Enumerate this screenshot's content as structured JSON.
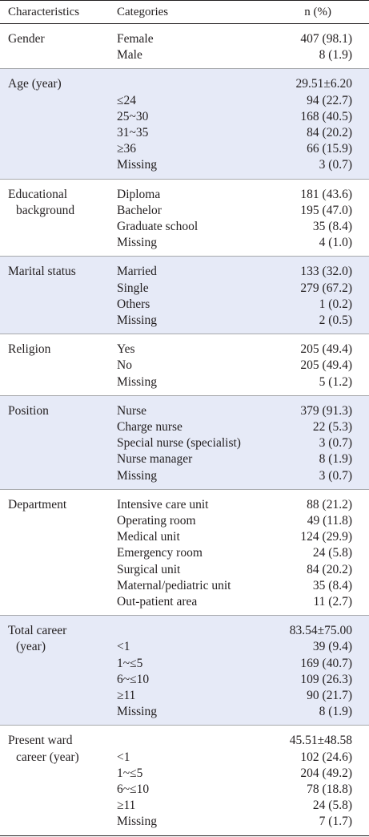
{
  "header": {
    "characteristics": "Characteristics",
    "categories": "Categories",
    "n_pct": "n (%)"
  },
  "groups": [
    {
      "name": [
        "Gender"
      ],
      "rows": [
        {
          "cat": "Female",
          "val": "407 (98.1)"
        },
        {
          "cat": "Male",
          "val": "8 (1.9)"
        }
      ]
    },
    {
      "name": [
        "Age (year)"
      ],
      "rows": [
        {
          "cat": "",
          "val": "29.51±6.20"
        },
        {
          "cat": "≤24",
          "val": "94 (22.7)"
        },
        {
          "cat": "25~30",
          "val": "168 (40.5)"
        },
        {
          "cat": "31~35",
          "val": "84 (20.2)"
        },
        {
          "cat": "≥36",
          "val": "66 (15.9)"
        },
        {
          "cat": "Missing",
          "val": "3 (0.7)"
        }
      ]
    },
    {
      "name": [
        "Educational",
        "background"
      ],
      "rows": [
        {
          "cat": "Diploma",
          "val": "181 (43.6)"
        },
        {
          "cat": "Bachelor",
          "val": "195 (47.0)"
        },
        {
          "cat": "Graduate school",
          "val": "35 (8.4)"
        },
        {
          "cat": "Missing",
          "val": "4 (1.0)"
        }
      ]
    },
    {
      "name": [
        "Marital status"
      ],
      "rows": [
        {
          "cat": "Married",
          "val": "133 (32.0)"
        },
        {
          "cat": "Single",
          "val": "279 (67.2)"
        },
        {
          "cat": "Others",
          "val": "1 (0.2)"
        },
        {
          "cat": "Missing",
          "val": "2 (0.5)"
        }
      ]
    },
    {
      "name": [
        "Religion"
      ],
      "rows": [
        {
          "cat": "Yes",
          "val": "205 (49.4)"
        },
        {
          "cat": "No",
          "val": "205 (49.4)"
        },
        {
          "cat": "Missing",
          "val": "5 (1.2)"
        }
      ]
    },
    {
      "name": [
        "Position"
      ],
      "rows": [
        {
          "cat": "Nurse",
          "val": "379 (91.3)"
        },
        {
          "cat": "Charge nurse",
          "val": "22 (5.3)"
        },
        {
          "cat": "Special nurse (specialist)",
          "val": "3 (0.7)"
        },
        {
          "cat": "Nurse manager",
          "val": "8 (1.9)"
        },
        {
          "cat": "Missing",
          "val": "3 (0.7)"
        }
      ]
    },
    {
      "name": [
        "Department"
      ],
      "rows": [
        {
          "cat": "Intensive care unit",
          "val": "88 (21.2)"
        },
        {
          "cat": "Operating room",
          "val": "49 (11.8)"
        },
        {
          "cat": "Medical unit",
          "val": "124 (29.9)"
        },
        {
          "cat": "Emergency room",
          "val": "24 (5.8)"
        },
        {
          "cat": "Surgical unit",
          "val": "84 (20.2)"
        },
        {
          "cat": "Maternal/pediatric unit",
          "val": "35 (8.4)"
        },
        {
          "cat": "Out-patient area",
          "val": "11 (2.7)"
        }
      ]
    },
    {
      "name": [
        "Total career",
        "(year)"
      ],
      "rows": [
        {
          "cat": "",
          "val": "83.54±75.00"
        },
        {
          "cat": "<1",
          "val": "39 (9.4)"
        },
        {
          "cat": "1~≤5",
          "val": "169 (40.7)"
        },
        {
          "cat": "6~≤10",
          "val": "109 (26.3)"
        },
        {
          "cat": "≥11",
          "val": "90 (21.7)"
        },
        {
          "cat": "Missing",
          "val": "8 (1.9)"
        }
      ]
    },
    {
      "name": [
        "Present ward",
        "career (year)"
      ],
      "rows": [
        {
          "cat": "",
          "val": "45.51±48.58"
        },
        {
          "cat": "<1",
          "val": "102 (24.6)"
        },
        {
          "cat": "1~≤5",
          "val": "204 (49.2)"
        },
        {
          "cat": "6~≤10",
          "val": "78 (18.8)"
        },
        {
          "cat": "≥11",
          "val": "24 (5.8)"
        },
        {
          "cat": "Missing",
          "val": "7 (1.7)"
        }
      ]
    }
  ]
}
